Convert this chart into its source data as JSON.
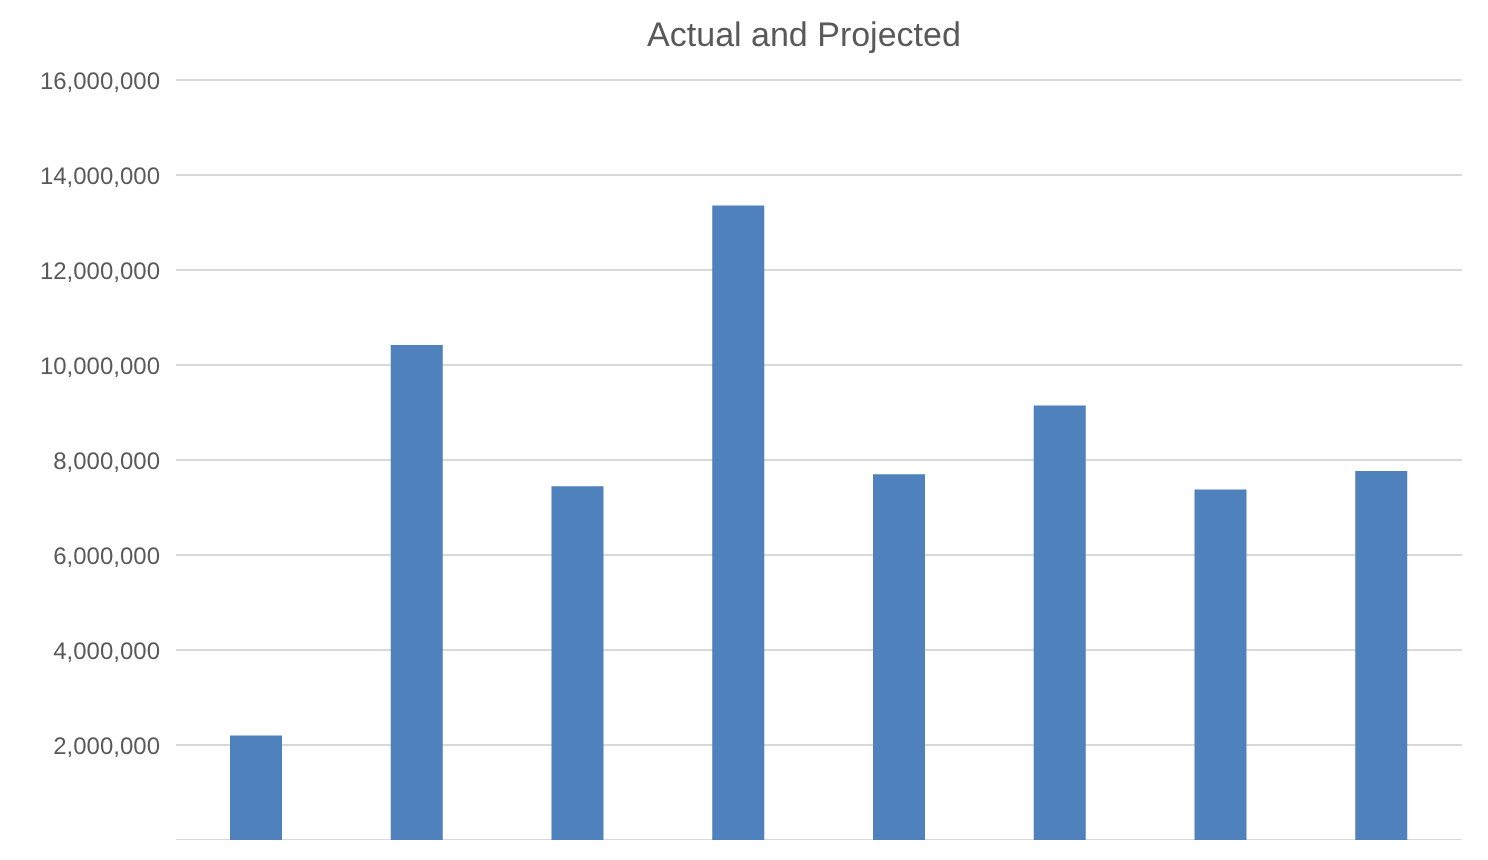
{
  "chart_data": {
    "type": "bar",
    "title": "Actual and Projected",
    "categories": [
      null,
      null,
      null,
      null,
      null,
      null,
      null,
      null
    ],
    "values": [
      2200000,
      10420000,
      7450000,
      13360000,
      7700000,
      9150000,
      7380000,
      7770000
    ],
    "color": "#4f81bd",
    "ylim": [
      0,
      16000000
    ],
    "yticks": [
      {
        "value": 2000000,
        "label": "2,000,000"
      },
      {
        "value": 4000000,
        "label": "4,000,000"
      },
      {
        "value": 6000000,
        "label": "6,000,000"
      },
      {
        "value": 8000000,
        "label": "8,000,000"
      },
      {
        "value": 10000000,
        "label": "10,000,000"
      },
      {
        "value": 12000000,
        "label": "12,000,000"
      },
      {
        "value": 14000000,
        "label": "14,000,000"
      },
      {
        "value": 16000000,
        "label": "16,000,000"
      }
    ],
    "grid": "y",
    "tick_labels": "y"
  }
}
